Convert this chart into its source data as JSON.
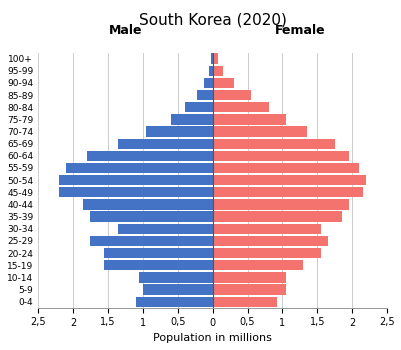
{
  "title": "South Korea (2020)",
  "xlabel": "Population in millions",
  "age_groups": [
    "0-4",
    "5-9",
    "10-14",
    "15-19",
    "20-24",
    "25-29",
    "30-34",
    "35-39",
    "40-44",
    "45-49",
    "50-54",
    "55-59",
    "60-64",
    "65-69",
    "70-74",
    "75-79",
    "80-84",
    "85-89",
    "90-94",
    "95-99",
    "100+"
  ],
  "male": [
    1.1,
    1.0,
    1.05,
    1.55,
    1.55,
    1.75,
    1.35,
    1.75,
    1.85,
    2.2,
    2.2,
    2.1,
    1.8,
    1.35,
    0.95,
    0.6,
    0.4,
    0.22,
    0.12,
    0.05,
    0.02
  ],
  "female": [
    0.92,
    1.05,
    1.05,
    1.3,
    1.55,
    1.65,
    1.55,
    1.85,
    1.95,
    2.15,
    2.2,
    2.1,
    1.95,
    1.75,
    1.35,
    1.05,
    0.8,
    0.55,
    0.3,
    0.15,
    0.08
  ],
  "male_color": "#4472C4",
  "female_color": "#F4736E",
  "male_label": "Male",
  "female_label": "Female",
  "xlim": 2.5,
  "background_color": "#ffffff",
  "grid_color": "#cccccc",
  "tick_labels": [
    "2,5",
    "2",
    "1,5",
    "1",
    "0,5",
    "0",
    "0,5",
    "1",
    "1,5",
    "2",
    "2,5"
  ],
  "tick_values": [
    -2.5,
    -2.0,
    -1.5,
    -1.0,
    -0.5,
    0,
    0.5,
    1.0,
    1.5,
    2.0,
    2.5
  ]
}
